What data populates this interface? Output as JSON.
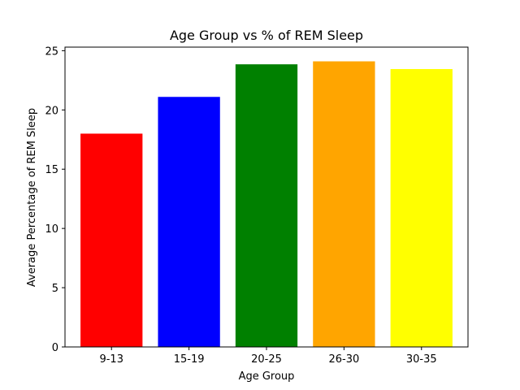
{
  "chart_data": {
    "type": "bar",
    "title": "Age Group vs % of REM Sleep",
    "xlabel": "Age Group",
    "ylabel": "Average Percentage of REM Sleep",
    "categories": [
      "9-13",
      "15-19",
      "20-25",
      "26-30",
      "30-35"
    ],
    "values": [
      18.0,
      21.1,
      23.85,
      24.1,
      23.45
    ],
    "colors": [
      "#ff0000",
      "#0000ff",
      "#008000",
      "#ffa500",
      "#ffff00"
    ],
    "ylim": [
      0,
      25.3
    ],
    "yticks": [
      0,
      5,
      10,
      15,
      20,
      25
    ],
    "grid": false,
    "legend": false
  }
}
